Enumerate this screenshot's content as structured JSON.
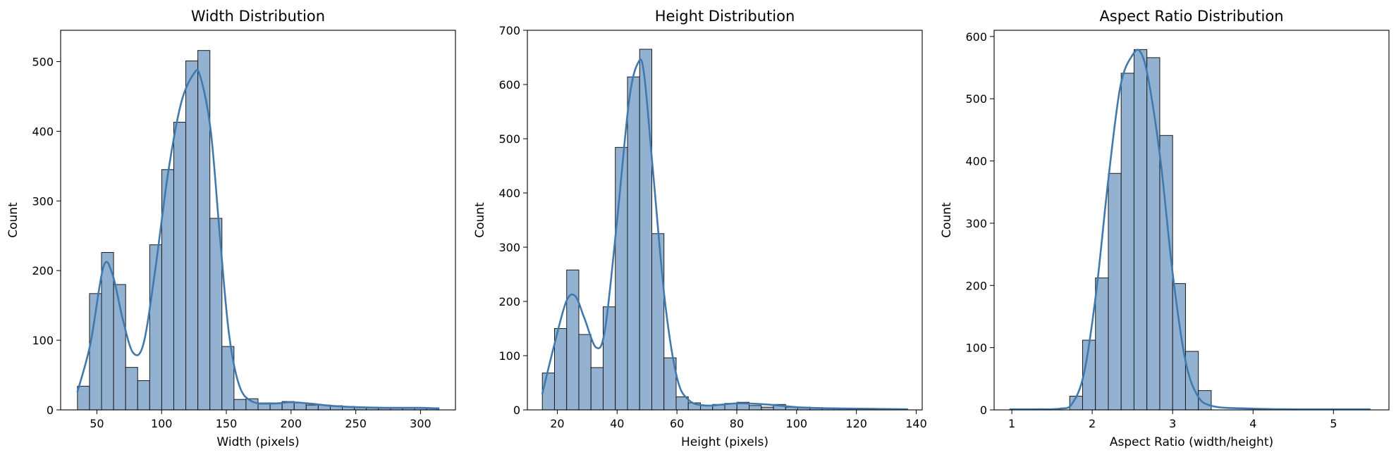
{
  "colors": {
    "bar_fill": "#93b2d2",
    "bar_edge": "#1a1a1a",
    "kde_line": "#4079ad",
    "background": "#ffffff"
  },
  "chart_data": [
    {
      "type": "bar",
      "title": "Width Distribution",
      "xlabel": "Width (pixels)",
      "ylabel": "Count",
      "xlim": [
        22,
        327
      ],
      "ylim": [
        0,
        545
      ],
      "xticks": [
        50,
        100,
        150,
        200,
        250,
        300
      ],
      "yticks": [
        0,
        100,
        200,
        300,
        400,
        500
      ],
      "bin_edges": [
        35,
        44.3,
        53.6,
        62.9,
        72.2,
        81.5,
        90.8,
        100.1,
        109.4,
        118.7,
        128,
        137.3,
        146.6,
        155.9,
        165.2,
        174.5,
        183.8,
        193.1,
        202.4,
        211.7,
        221,
        230.3,
        239.6,
        248.9,
        258.2,
        267.5,
        276.8,
        286.1,
        295.4,
        304.7,
        314
      ],
      "values": [
        34,
        167,
        226,
        180,
        61,
        42,
        237,
        345,
        413,
        501,
        516,
        275,
        91,
        15,
        16,
        10,
        10,
        12,
        10,
        7,
        7,
        6,
        5,
        4,
        3,
        3,
        3,
        3,
        3,
        3
      ],
      "kde": [
        [
          35,
          26
        ],
        [
          45,
          95
        ],
        [
          55,
          205
        ],
        [
          62,
          195
        ],
        [
          70,
          130
        ],
        [
          78,
          82
        ],
        [
          86,
          95
        ],
        [
          95,
          200
        ],
        [
          105,
          340
        ],
        [
          115,
          440
        ],
        [
          125,
          483
        ],
        [
          130,
          478
        ],
        [
          138,
          400
        ],
        [
          145,
          250
        ],
        [
          152,
          110
        ],
        [
          160,
          35
        ],
        [
          170,
          12
        ],
        [
          185,
          9
        ],
        [
          200,
          11
        ],
        [
          215,
          9
        ],
        [
          230,
          6
        ],
        [
          250,
          4
        ],
        [
          275,
          3
        ],
        [
          300,
          3
        ],
        [
          314,
          2
        ]
      ],
      "grid": false
    },
    {
      "type": "bar",
      "title": "Height Distribution",
      "xlabel": "Height (pixels)",
      "ylabel": "Count",
      "xlim": [
        10,
        142
      ],
      "ylim": [
        0,
        700
      ],
      "xticks": [
        20,
        40,
        60,
        80,
        100,
        120,
        140
      ],
      "yticks": [
        0,
        100,
        200,
        300,
        400,
        500,
        600,
        700
      ],
      "bin_edges": [
        15,
        19.067,
        23.133,
        27.2,
        31.267,
        35.333,
        39.4,
        43.467,
        47.533,
        51.6,
        55.667,
        59.733,
        63.8,
        67.867,
        71.933,
        76,
        80.067,
        84.133,
        88.2,
        92.267,
        96.333,
        100.4,
        104.467,
        108.533,
        112.6,
        116.667,
        120.733,
        124.8,
        128.867,
        132.933,
        137
      ],
      "values": [
        68,
        150,
        258,
        139,
        78,
        190,
        484,
        614,
        665,
        325,
        96,
        24,
        13,
        8,
        10,
        12,
        14,
        8,
        5,
        10,
        5,
        5,
        4,
        3,
        2,
        2,
        2,
        2,
        2,
        2
      ],
      "kde": [
        [
          15,
          30
        ],
        [
          19,
          120
        ],
        [
          23,
          200
        ],
        [
          26,
          210
        ],
        [
          29,
          170
        ],
        [
          33,
          115
        ],
        [
          36,
          150
        ],
        [
          40,
          350
        ],
        [
          44,
          570
        ],
        [
          47,
          640
        ],
        [
          49,
          620
        ],
        [
          52,
          440
        ],
        [
          56,
          200
        ],
        [
          60,
          60
        ],
        [
          64,
          18
        ],
        [
          70,
          8
        ],
        [
          80,
          12
        ],
        [
          90,
          10
        ],
        [
          100,
          5
        ],
        [
          110,
          3
        ],
        [
          125,
          2
        ],
        [
          137,
          1
        ]
      ],
      "grid": false
    },
    {
      "type": "bar",
      "title": "Aspect Ratio Distribution",
      "xlabel": "Aspect Ratio (width/height)",
      "ylabel": "Count",
      "xlim": [
        0.78,
        5.69
      ],
      "ylim": [
        0,
        610
      ],
      "xticks": [
        1,
        2,
        3,
        4,
        5
      ],
      "yticks": [
        0,
        100,
        200,
        300,
        400,
        500,
        600
      ],
      "bin_edges": [
        1.72,
        1.88,
        2.04,
        2.2,
        2.36,
        2.52,
        2.68,
        2.84,
        3,
        3.16,
        3.32,
        3.48
      ],
      "values": [
        22,
        112,
        212,
        380,
        541,
        579,
        566,
        441,
        203,
        94,
        31
      ],
      "kde": [
        [
          0.98,
          1
        ],
        [
          1.3,
          1
        ],
        [
          1.6,
          2
        ],
        [
          1.75,
          10
        ],
        [
          1.9,
          60
        ],
        [
          2.05,
          190
        ],
        [
          2.2,
          370
        ],
        [
          2.35,
          520
        ],
        [
          2.5,
          570
        ],
        [
          2.6,
          575
        ],
        [
          2.7,
          530
        ],
        [
          2.85,
          400
        ],
        [
          3,
          220
        ],
        [
          3.15,
          85
        ],
        [
          3.3,
          25
        ],
        [
          3.5,
          6
        ],
        [
          4,
          2
        ],
        [
          4.5,
          1
        ],
        [
          5.45,
          1
        ]
      ],
      "grid": false
    }
  ]
}
